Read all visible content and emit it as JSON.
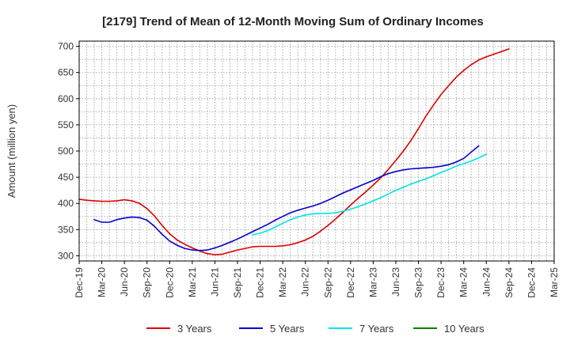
{
  "chart_data": {
    "type": "line",
    "title": "[2179]  Trend of Mean of 12-Month Moving Sum of Ordinary Incomes",
    "xlabel": "",
    "ylabel": "Amount (million yen)",
    "ylim": [
      290,
      710
    ],
    "yticks": [
      300,
      350,
      400,
      450,
      500,
      550,
      600,
      650,
      700
    ],
    "x_labels": [
      "Dec-19",
      "Mar-20",
      "Jun-20",
      "Sep-20",
      "Dec-20",
      "Mar-21",
      "Jun-21",
      "Sep-21",
      "Dec-21",
      "Mar-22",
      "Jun-22",
      "Sep-22",
      "Dec-22",
      "Mar-23",
      "Jun-23",
      "Sep-23",
      "Dec-23",
      "Mar-24",
      "Jun-24",
      "Sep-24",
      "Dec-24",
      "Mar-25"
    ],
    "grid": true,
    "legend_position": "bottom",
    "series": [
      {
        "name": "3 Years",
        "color": "#dd0000",
        "start_index": 0,
        "values": [
          408,
          406,
          405,
          404,
          404,
          405,
          407,
          405,
          400,
          390,
          376,
          358,
          342,
          330,
          322,
          315,
          309,
          304,
          302,
          303,
          307,
          311,
          314,
          317,
          318,
          318,
          318,
          319,
          321,
          325,
          330,
          337,
          347,
          358,
          370,
          383,
          397,
          410,
          422,
          435,
          449,
          465,
          482,
          500,
          520,
          543,
          567,
          588,
          608,
          625,
          641,
          654,
          665,
          674,
          680,
          685,
          690,
          695
        ]
      },
      {
        "name": "5 Years",
        "color": "#0000cc",
        "start_index": 2,
        "values": [
          369,
          364,
          364,
          369,
          372,
          374,
          373,
          368,
          356,
          341,
          328,
          320,
          314,
          311,
          310,
          311,
          315,
          320,
          326,
          332,
          339,
          346,
          353,
          360,
          368,
          375,
          382,
          387,
          391,
          395,
          400,
          406,
          413,
          420,
          426,
          432,
          438,
          444,
          451,
          457,
          461,
          464,
          466,
          467,
          468,
          469,
          471,
          474,
          479,
          486,
          498,
          510
        ]
      },
      {
        "name": "7 Years",
        "color": "#00e5e5",
        "start_index": 23,
        "values": [
          340,
          343,
          348,
          355,
          362,
          369,
          374,
          378,
          380,
          381,
          381,
          382,
          385,
          389,
          394,
          399,
          405,
          411,
          418,
          425,
          431,
          437,
          442,
          447,
          453,
          459,
          465,
          471,
          476,
          481,
          487,
          494
        ]
      },
      {
        "name": "10 Years",
        "color": "#008000",
        "start_index": 0,
        "values": []
      }
    ]
  }
}
